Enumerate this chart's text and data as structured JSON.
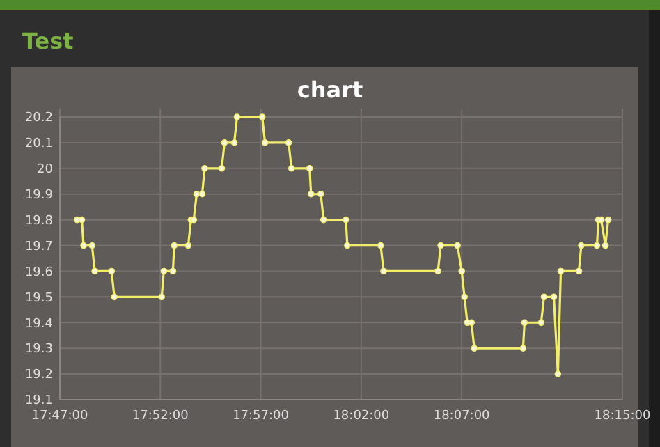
{
  "chart_data": {
    "type": "line",
    "title": "chart",
    "annotations": [
      "Test"
    ],
    "x": [
      17.7976,
      17.8015,
      17.803,
      17.81,
      17.8123,
      17.8262,
      17.8285,
      17.8678,
      17.8696,
      17.8771,
      17.8782,
      17.8898,
      17.8921,
      17.8944,
      17.8968,
      17.9014,
      17.9034,
      17.9176,
      17.9199,
      17.928,
      17.9303,
      17.9512,
      17.9535,
      17.9731,
      17.9755,
      17.9905,
      17.9917,
      17.9998,
      18.0021,
      18.0206,
      18.0218,
      18.0495,
      18.0519,
      18.097,
      18.0993,
      18.1132,
      18.1167,
      18.119,
      18.1213,
      18.1248,
      18.1271,
      18.1676,
      18.1688,
      18.1826,
      18.185,
      18.1931,
      18.1965,
      18.1989,
      18.2139,
      18.2159,
      18.2289,
      18.2301,
      18.2324,
      18.2359,
      18.2382
    ],
    "series": [
      {
        "color": "#f2ee6a",
        "values": [
          19.8,
          19.8,
          19.7,
          19.7,
          19.6,
          19.6,
          19.5,
          19.5,
          19.6,
          19.6,
          19.7,
          19.7,
          19.8,
          19.8,
          19.9,
          19.9,
          20.0,
          20.0,
          20.1,
          20.1,
          20.2,
          20.2,
          20.1,
          20.1,
          20.0,
          20.0,
          19.9,
          19.9,
          19.8,
          19.8,
          19.7,
          19.7,
          19.6,
          19.6,
          19.7,
          19.7,
          19.6,
          19.5,
          19.4,
          19.4,
          19.3,
          19.3,
          19.4,
          19.4,
          19.5,
          19.5,
          19.2,
          19.6,
          19.6,
          19.7,
          19.7,
          19.8,
          19.8,
          19.7,
          19.8
        ]
      }
    ],
    "xlim": [
      17.78333,
      18.25
    ],
    "xticks": [
      {
        "value": 17.78333,
        "label": "17:47:00"
      },
      {
        "value": 17.86667,
        "label": "17:52:00"
      },
      {
        "value": 17.95,
        "label": "17:57:00"
      },
      {
        "value": 18.03333,
        "label": "18:02:00"
      },
      {
        "value": 18.11667,
        "label": "18:07:00"
      },
      {
        "value": 18.25,
        "label": "18:15:00"
      }
    ],
    "ylim": [
      19.1,
      20.2
    ],
    "yticks": [
      19.1,
      19.2,
      19.3,
      19.4,
      19.5,
      19.6,
      19.7,
      19.8,
      19.9,
      20,
      20.1,
      20.2
    ],
    "grid": true,
    "marker": "circle",
    "line_style": "solid"
  }
}
